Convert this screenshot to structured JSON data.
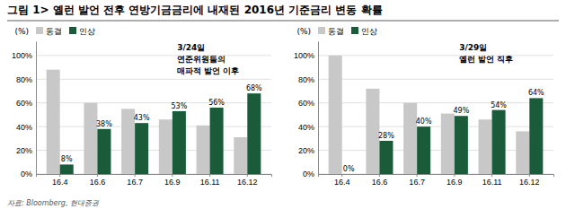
{
  "title": "그림 1> 옐런 발언 전후 연방기금금리에 내재된 2016년 기준금리 변동 확률",
  "source": "자료: Bloomberg, 현대증권",
  "chart_data": [
    {
      "type": "bar",
      "ylabel": "(%)",
      "annotation": "3/24일\n연준위원들의\n매파적 발언 이후",
      "categories": [
        "16.4",
        "16.6",
        "16.7",
        "16.9",
        "16.11",
        "16.12"
      ],
      "series": [
        {
          "name": "동결",
          "color": "#c8c8c8",
          "values": [
            88,
            60,
            55,
            46,
            41,
            31
          ]
        },
        {
          "name": "인상",
          "color": "#1a5c3a",
          "values": [
            8,
            38,
            43,
            53,
            56,
            68
          ],
          "value_labels": [
            "8%",
            "38%",
            "43%",
            "53%",
            "56%",
            "68%"
          ]
        }
      ],
      "ylim": [
        0,
        112
      ],
      "yticks": [
        {
          "value": 0,
          "label": "0%"
        },
        {
          "value": 20,
          "label": "20%"
        },
        {
          "value": 40,
          "label": "40%"
        },
        {
          "value": 60,
          "label": "60%"
        },
        {
          "value": 80,
          "label": "80%"
        },
        {
          "value": 100,
          "label": "100%"
        }
      ],
      "grid": true,
      "legend": "upper left",
      "data_labels": true
    },
    {
      "type": "bar",
      "ylabel": "(%)",
      "annotation": "3/29일\n옐런 발언 직후",
      "categories": [
        "16.4",
        "16.6",
        "16.7",
        "16.9",
        "16.11",
        "16.12"
      ],
      "series": [
        {
          "name": "동결",
          "color": "#c8c8c8",
          "values": [
            100,
            72,
            60,
            51,
            46,
            36
          ]
        },
        {
          "name": "인상",
          "color": "#1a5c3a",
          "values": [
            0,
            28,
            40,
            49,
            54,
            64
          ],
          "value_labels": [
            "0%",
            "28%",
            "40%",
            "49%",
            "54%",
            "64%"
          ]
        }
      ],
      "ylim": [
        0,
        112
      ],
      "yticks": [
        {
          "value": 0,
          "label": "0%"
        },
        {
          "value": 20,
          "label": "20%"
        },
        {
          "value": 40,
          "label": "40%"
        },
        {
          "value": 60,
          "label": "60%"
        },
        {
          "value": 80,
          "label": "80%"
        },
        {
          "value": 100,
          "label": "100%"
        }
      ],
      "grid": true,
      "legend": "upper left",
      "data_labels": true
    }
  ]
}
